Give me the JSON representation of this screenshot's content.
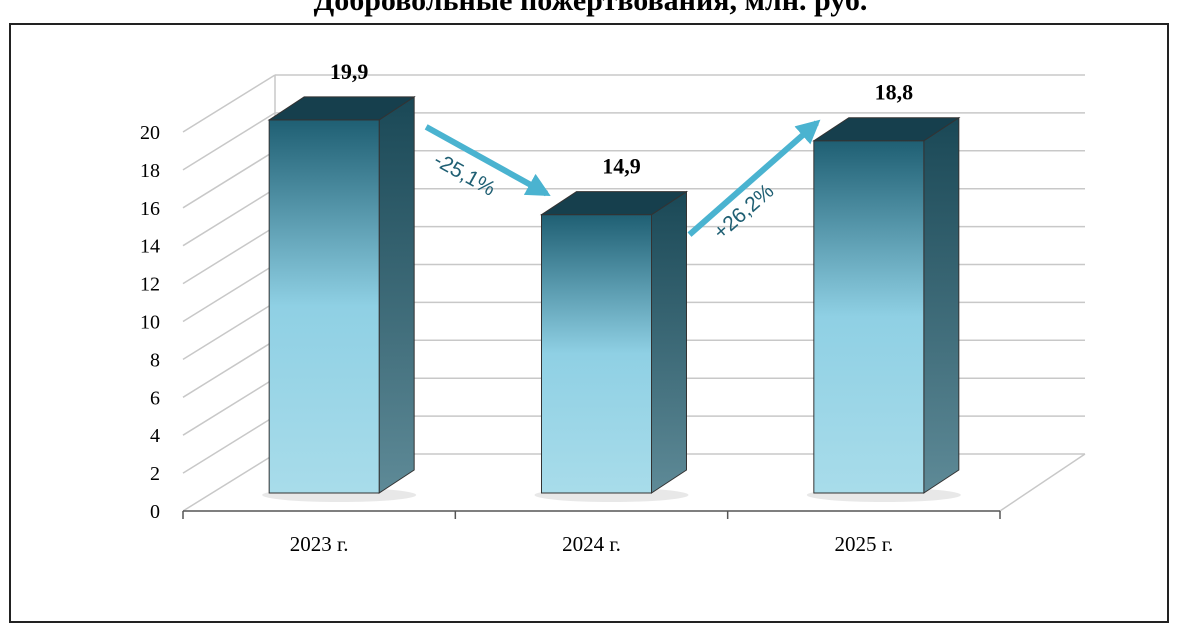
{
  "chart_data": {
    "type": "bar",
    "title": "Добровольные пожертвования, млн. руб.",
    "categories": [
      "2023 г.",
      "2024 г.",
      "2025 г."
    ],
    "values": [
      19.9,
      14.9,
      18.8
    ],
    "value_labels": [
      "19,9",
      "14,9",
      "18,8"
    ],
    "ylim": [
      0,
      20
    ],
    "yticks": [
      "0",
      "2",
      "4",
      "6",
      "8",
      "10",
      "12",
      "14",
      "16",
      "18",
      "20"
    ],
    "xlabel": "",
    "ylabel": "",
    "grid": true,
    "legend": "none",
    "annotations": [
      {
        "from": 0,
        "to": 1,
        "text": "-25,1%"
      },
      {
        "from": 1,
        "to": 2,
        "text": "+26,2%"
      }
    ],
    "colors": {
      "bar_top": "#1f5f73",
      "bar_light": "#8fd0e4",
      "bar_side": "#3d6f7e",
      "bar_cap": "#163f4d",
      "arrow": "#4ab3d0",
      "arrow_text": "#1f5f73",
      "grid": "#c8c8c8"
    }
  }
}
